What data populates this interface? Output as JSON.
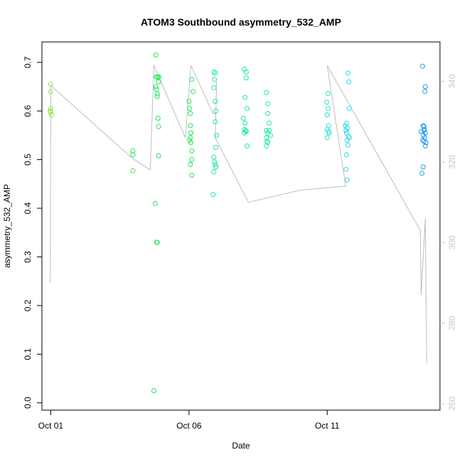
{
  "chart_data": {
    "type": "scatter",
    "title": "ATOM3 Southbound asymmetry_532_AMP",
    "xlabel": "Date",
    "ylabel": "asymmetry_532_AMP",
    "x_is_day_of_month": true,
    "x_ticks": [
      {
        "value": 1,
        "label": "Oct 01"
      },
      {
        "value": 6,
        "label": "Oct 06"
      },
      {
        "value": 11,
        "label": "Oct 11"
      }
    ],
    "xlim": [
      0.68,
      15.08
    ],
    "y_ticks": [
      0.0,
      0.1,
      0.2,
      0.3,
      0.4,
      0.5,
      0.6,
      0.7
    ],
    "y_tick_labels": [
      "0.0",
      "0.1",
      "0.2",
      "0.3",
      "0.4",
      "0.5",
      "0.6",
      "0.7"
    ],
    "ylim": [
      -0.015,
      0.742
    ],
    "y2_ticks": [
      260,
      280,
      300,
      320,
      340
    ],
    "y2_tick_labels": [
      "260",
      "280",
      "300",
      "320",
      "340"
    ],
    "y2lim": [
      258.4,
      349.8
    ],
    "grid": false,
    "legend": "none",
    "point_colors": [
      "#90e84a",
      "#3ce83c",
      "#1ee85a",
      "#1ee898",
      "#22e8c8",
      "#2ad8e8",
      "#1e9ce8"
    ],
    "line_color": "#bebebe",
    "series": [
      {
        "day": 1,
        "points": [
          [
            1.0,
            0.655
          ],
          [
            1.0,
            0.64
          ],
          [
            1.0,
            0.605
          ],
          [
            1.0,
            0.598
          ],
          [
            1.02,
            0.592
          ],
          [
            0.98,
            0.6
          ]
        ]
      },
      {
        "day": 4,
        "points": [
          [
            3.97,
            0.518
          ],
          [
            3.97,
            0.51
          ],
          [
            3.97,
            0.477
          ],
          [
            4.73,
            0.025
          ],
          [
            4.78,
            0.41
          ],
          [
            4.8,
            0.715
          ],
          [
            4.8,
            0.65
          ],
          [
            4.82,
            0.67
          ],
          [
            4.82,
            0.645
          ],
          [
            4.85,
            0.635
          ],
          [
            4.85,
            0.63
          ],
          [
            4.87,
            0.67
          ],
          [
            4.87,
            0.67
          ],
          [
            4.88,
            0.585
          ],
          [
            4.9,
            0.568
          ],
          [
            4.9,
            0.508
          ],
          [
            4.83,
            0.33
          ],
          [
            4.85,
            0.33
          ],
          [
            4.9,
            0.66
          ],
          [
            4.92,
            0.67
          ]
        ]
      },
      {
        "day": 6,
        "points": [
          [
            6.0,
            0.62
          ],
          [
            6.02,
            0.605
          ],
          [
            6.05,
            0.595
          ],
          [
            6.05,
            0.57
          ],
          [
            6.07,
            0.555
          ],
          [
            6.05,
            0.545
          ],
          [
            6.07,
            0.535
          ],
          [
            6.1,
            0.518
          ],
          [
            6.1,
            0.5
          ],
          [
            6.05,
            0.49
          ],
          [
            6.1,
            0.468
          ],
          [
            6.1,
            0.665
          ],
          [
            6.15,
            0.64
          ],
          [
            6.02,
            0.54
          ],
          [
            6.9,
            0.68
          ],
          [
            6.92,
            0.665
          ],
          [
            6.95,
            0.678
          ],
          [
            6.9,
            0.648
          ],
          [
            6.95,
            0.62
          ],
          [
            6.97,
            0.6
          ],
          [
            6.95,
            0.578
          ],
          [
            7.0,
            0.55
          ],
          [
            6.97,
            0.525
          ],
          [
            6.9,
            0.505
          ],
          [
            6.92,
            0.495
          ],
          [
            6.95,
            0.49
          ],
          [
            6.97,
            0.485
          ],
          [
            6.9,
            0.475
          ],
          [
            6.87,
            0.428
          ]
        ]
      },
      {
        "day": 8,
        "points": [
          [
            8.0,
            0.686
          ],
          [
            8.07,
            0.68
          ],
          [
            8.07,
            0.668
          ],
          [
            8.03,
            0.628
          ],
          [
            8.1,
            0.605
          ],
          [
            7.97,
            0.585
          ],
          [
            8.03,
            0.575
          ],
          [
            8.0,
            0.562
          ],
          [
            8.05,
            0.56
          ],
          [
            8.0,
            0.555
          ],
          [
            8.07,
            0.558
          ],
          [
            8.1,
            0.528
          ],
          [
            8.8,
            0.638
          ],
          [
            8.85,
            0.615
          ],
          [
            8.85,
            0.595
          ],
          [
            8.9,
            0.575
          ],
          [
            8.8,
            0.56
          ],
          [
            8.85,
            0.555
          ],
          [
            8.9,
            0.56
          ],
          [
            8.95,
            0.55
          ],
          [
            8.8,
            0.545
          ],
          [
            8.82,
            0.538
          ],
          [
            8.85,
            0.535
          ],
          [
            8.8,
            0.528
          ]
        ]
      },
      {
        "day": 11,
        "points": [
          [
            11.03,
            0.636
          ],
          [
            10.98,
            0.618
          ],
          [
            11.03,
            0.605
          ],
          [
            11.0,
            0.592
          ],
          [
            11.05,
            0.57
          ],
          [
            11.0,
            0.562
          ],
          [
            11.05,
            0.558
          ],
          [
            11.07,
            0.555
          ],
          [
            11.0,
            0.545
          ],
          [
            11.75,
            0.678
          ],
          [
            11.78,
            0.66
          ],
          [
            11.8,
            0.605
          ],
          [
            11.7,
            0.575
          ],
          [
            11.73,
            0.565
          ],
          [
            11.68,
            0.56
          ],
          [
            11.7,
            0.555
          ],
          [
            11.77,
            0.548
          ],
          [
            11.8,
            0.545
          ],
          [
            11.72,
            0.54
          ],
          [
            11.75,
            0.53
          ],
          [
            11.7,
            0.51
          ],
          [
            11.68,
            0.48
          ],
          [
            11.72,
            0.458
          ],
          [
            11.65,
            0.57
          ]
        ]
      },
      {
        "day": 14,
        "points": [
          [
            14.45,
            0.692
          ],
          [
            14.55,
            0.65
          ],
          [
            14.53,
            0.64
          ],
          [
            14.47,
            0.57
          ],
          [
            14.5,
            0.568
          ],
          [
            14.5,
            0.56
          ],
          [
            14.55,
            0.555
          ],
          [
            14.48,
            0.55
          ],
          [
            14.53,
            0.545
          ],
          [
            14.45,
            0.54
          ],
          [
            14.5,
            0.538
          ],
          [
            14.57,
            0.535
          ],
          [
            14.55,
            0.528
          ],
          [
            14.4,
            0.558
          ],
          [
            14.47,
            0.485
          ],
          [
            14.43,
            0.472
          ],
          [
            14.52,
            0.562
          ]
        ]
      }
    ],
    "line_y2": [
      [
        0.98,
        290
      ],
      [
        1.0,
        339
      ],
      [
        3.93,
        321
      ],
      [
        4.6,
        318
      ],
      [
        4.73,
        344
      ],
      [
        5.87,
        326
      ],
      [
        6.07,
        344
      ],
      [
        6.87,
        332
      ],
      [
        6.97,
        332
      ],
      [
        7.0,
        340
      ],
      [
        6.95,
        326
      ],
      [
        8.15,
        310
      ],
      [
        10.03,
        313
      ],
      [
        11.67,
        314
      ],
      [
        11.0,
        344
      ],
      [
        14.37,
        303
      ],
      [
        14.4,
        287
      ],
      [
        14.55,
        306
      ],
      [
        14.6,
        270
      ]
    ]
  }
}
